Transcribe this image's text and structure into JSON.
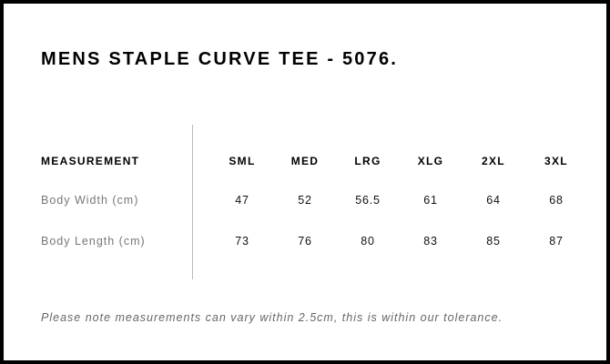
{
  "title": "MENS STAPLE CURVE TEE - 5076.",
  "table": {
    "header": "MEASUREMENT",
    "sizes": [
      "SML",
      "MED",
      "LRG",
      "XLG",
      "2XL",
      "3XL"
    ],
    "rows": [
      {
        "label": "Body Width (cm)",
        "values": [
          "47",
          "52",
          "56.5",
          "61",
          "64",
          "68"
        ]
      },
      {
        "label": "Body Length (cm)",
        "values": [
          "73",
          "76",
          "80",
          "83",
          "85",
          "87"
        ]
      }
    ]
  },
  "note": "Please note measurements can vary within 2.5cm, this is within our tolerance."
}
